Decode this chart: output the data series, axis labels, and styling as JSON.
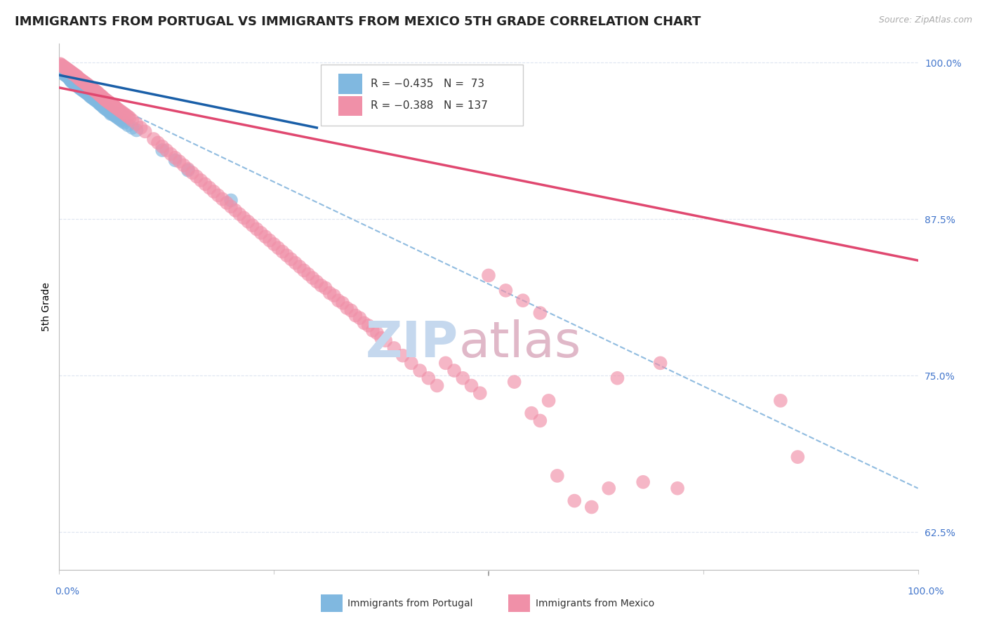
{
  "title": "IMMIGRANTS FROM PORTUGAL VS IMMIGRANTS FROM MEXICO 5TH GRADE CORRELATION CHART",
  "source": "Source: ZipAtlas.com",
  "ylabel": "5th Grade",
  "ytick_labels": [
    "100.0%",
    "87.5%",
    "75.0%",
    "62.5%"
  ],
  "ytick_values": [
    1.0,
    0.875,
    0.75,
    0.625
  ],
  "xlim": [
    0.0,
    1.0
  ],
  "ylim": [
    0.595,
    1.015
  ],
  "legend_label_portugal": "Immigrants from Portugal",
  "legend_label_mexico": "Immigrants from Mexico",
  "portugal_color": "#80b8e0",
  "mexico_color": "#f090a8",
  "portugal_line_color": "#1a5fa8",
  "mexico_line_color": "#e04870",
  "dashed_line_color": "#90bce0",
  "watermark_zip_color": "#c5d8ee",
  "watermark_atlas_color": "#e0b8c8",
  "background_color": "#ffffff",
  "grid_color": "#dde5f0",
  "right_tick_color": "#4477cc",
  "title_fontsize": 13,
  "axis_label_fontsize": 10,
  "tick_fontsize": 10,
  "portugal_pts": [
    [
      0.003,
      0.993
    ],
    [
      0.005,
      0.991
    ],
    [
      0.007,
      0.99
    ],
    [
      0.009,
      0.989
    ],
    [
      0.011,
      0.988
    ],
    [
      0.004,
      0.992
    ],
    [
      0.006,
      0.991
    ],
    [
      0.008,
      0.99
    ],
    [
      0.01,
      0.989
    ],
    [
      0.012,
      0.987
    ],
    [
      0.002,
      0.994
    ],
    [
      0.001,
      0.995
    ],
    [
      0.013,
      0.986
    ],
    [
      0.015,
      0.985
    ],
    [
      0.017,
      0.984
    ],
    [
      0.019,
      0.983
    ],
    [
      0.021,
      0.982
    ],
    [
      0.014,
      0.985
    ],
    [
      0.016,
      0.984
    ],
    [
      0.018,
      0.983
    ],
    [
      0.02,
      0.982
    ],
    [
      0.022,
      0.981
    ],
    [
      0.024,
      0.98
    ],
    [
      0.026,
      0.979
    ],
    [
      0.028,
      0.978
    ],
    [
      0.03,
      0.977
    ],
    [
      0.032,
      0.976
    ],
    [
      0.034,
      0.975
    ],
    [
      0.023,
      0.98
    ],
    [
      0.025,
      0.979
    ],
    [
      0.027,
      0.978
    ],
    [
      0.029,
      0.977
    ],
    [
      0.031,
      0.976
    ],
    [
      0.033,
      0.975
    ],
    [
      0.035,
      0.974
    ],
    [
      0.037,
      0.973
    ],
    [
      0.039,
      0.972
    ],
    [
      0.041,
      0.971
    ],
    [
      0.043,
      0.97
    ],
    [
      0.045,
      0.969
    ],
    [
      0.036,
      0.973
    ],
    [
      0.038,
      0.972
    ],
    [
      0.04,
      0.971
    ],
    [
      0.042,
      0.97
    ],
    [
      0.044,
      0.969
    ],
    [
      0.046,
      0.968
    ],
    [
      0.048,
      0.967
    ],
    [
      0.05,
      0.966
    ],
    [
      0.047,
      0.967
    ],
    [
      0.049,
      0.966
    ],
    [
      0.051,
      0.965
    ],
    [
      0.053,
      0.964
    ],
    [
      0.055,
      0.963
    ],
    [
      0.057,
      0.962
    ],
    [
      0.059,
      0.961
    ],
    [
      0.061,
      0.96
    ],
    [
      0.063,
      0.959
    ],
    [
      0.065,
      0.958
    ],
    [
      0.052,
      0.964
    ],
    [
      0.054,
      0.963
    ],
    [
      0.056,
      0.962
    ],
    [
      0.058,
      0.961
    ],
    [
      0.06,
      0.96
    ],
    [
      0.062,
      0.959
    ],
    [
      0.064,
      0.958
    ],
    [
      0.066,
      0.957
    ],
    [
      0.068,
      0.956
    ],
    [
      0.07,
      0.955
    ],
    [
      0.072,
      0.954
    ],
    [
      0.074,
      0.953
    ],
    [
      0.076,
      0.952
    ],
    [
      0.085,
      0.948
    ],
    [
      0.12,
      0.93
    ],
    [
      0.135,
      0.922
    ],
    [
      0.15,
      0.914
    ],
    [
      0.09,
      0.946
    ],
    [
      0.08,
      0.95
    ],
    [
      0.06,
      0.959
    ],
    [
      0.2,
      0.89
    ]
  ],
  "mexico_pts": [
    [
      0.003,
      0.998
    ],
    [
      0.005,
      0.997
    ],
    [
      0.007,
      0.996
    ],
    [
      0.009,
      0.995
    ],
    [
      0.011,
      0.994
    ],
    [
      0.004,
      0.997
    ],
    [
      0.006,
      0.996
    ],
    [
      0.008,
      0.995
    ],
    [
      0.01,
      0.994
    ],
    [
      0.012,
      0.993
    ],
    [
      0.002,
      0.998
    ],
    [
      0.001,
      0.999
    ],
    [
      0.013,
      0.993
    ],
    [
      0.015,
      0.992
    ],
    [
      0.017,
      0.991
    ],
    [
      0.019,
      0.99
    ],
    [
      0.021,
      0.989
    ],
    [
      0.014,
      0.992
    ],
    [
      0.016,
      0.991
    ],
    [
      0.018,
      0.99
    ],
    [
      0.02,
      0.989
    ],
    [
      0.022,
      0.988
    ],
    [
      0.024,
      0.987
    ],
    [
      0.026,
      0.986
    ],
    [
      0.028,
      0.985
    ],
    [
      0.03,
      0.984
    ],
    [
      0.032,
      0.983
    ],
    [
      0.034,
      0.982
    ],
    [
      0.023,
      0.987
    ],
    [
      0.025,
      0.986
    ],
    [
      0.027,
      0.985
    ],
    [
      0.029,
      0.984
    ],
    [
      0.031,
      0.983
    ],
    [
      0.033,
      0.982
    ],
    [
      0.035,
      0.981
    ],
    [
      0.037,
      0.98
    ],
    [
      0.039,
      0.979
    ],
    [
      0.041,
      0.978
    ],
    [
      0.043,
      0.977
    ],
    [
      0.045,
      0.976
    ],
    [
      0.036,
      0.98
    ],
    [
      0.038,
      0.979
    ],
    [
      0.04,
      0.978
    ],
    [
      0.042,
      0.977
    ],
    [
      0.044,
      0.976
    ],
    [
      0.046,
      0.975
    ],
    [
      0.048,
      0.974
    ],
    [
      0.05,
      0.973
    ],
    [
      0.047,
      0.974
    ],
    [
      0.049,
      0.973
    ],
    [
      0.051,
      0.972
    ],
    [
      0.053,
      0.971
    ],
    [
      0.055,
      0.97
    ],
    [
      0.057,
      0.969
    ],
    [
      0.059,
      0.968
    ],
    [
      0.061,
      0.967
    ],
    [
      0.063,
      0.966
    ],
    [
      0.065,
      0.965
    ],
    [
      0.052,
      0.971
    ],
    [
      0.054,
      0.97
    ],
    [
      0.056,
      0.969
    ],
    [
      0.058,
      0.968
    ],
    [
      0.06,
      0.967
    ],
    [
      0.062,
      0.966
    ],
    [
      0.064,
      0.965
    ],
    [
      0.066,
      0.964
    ],
    [
      0.068,
      0.963
    ],
    [
      0.07,
      0.962
    ],
    [
      0.072,
      0.961
    ],
    [
      0.074,
      0.96
    ],
    [
      0.076,
      0.959
    ],
    [
      0.078,
      0.958
    ],
    [
      0.08,
      0.957
    ],
    [
      0.082,
      0.956
    ],
    [
      0.085,
      0.954
    ],
    [
      0.09,
      0.951
    ],
    [
      0.095,
      0.948
    ],
    [
      0.1,
      0.945
    ],
    [
      0.11,
      0.939
    ],
    [
      0.12,
      0.933
    ],
    [
      0.13,
      0.927
    ],
    [
      0.14,
      0.921
    ],
    [
      0.15,
      0.915
    ],
    [
      0.16,
      0.909
    ],
    [
      0.17,
      0.903
    ],
    [
      0.18,
      0.897
    ],
    [
      0.19,
      0.891
    ],
    [
      0.2,
      0.885
    ],
    [
      0.21,
      0.879
    ],
    [
      0.22,
      0.873
    ],
    [
      0.23,
      0.867
    ],
    [
      0.24,
      0.861
    ],
    [
      0.25,
      0.855
    ],
    [
      0.26,
      0.849
    ],
    [
      0.27,
      0.843
    ],
    [
      0.28,
      0.837
    ],
    [
      0.29,
      0.831
    ],
    [
      0.3,
      0.825
    ],
    [
      0.115,
      0.936
    ],
    [
      0.125,
      0.93
    ],
    [
      0.135,
      0.924
    ],
    [
      0.145,
      0.918
    ],
    [
      0.155,
      0.912
    ],
    [
      0.165,
      0.906
    ],
    [
      0.175,
      0.9
    ],
    [
      0.185,
      0.894
    ],
    [
      0.195,
      0.888
    ],
    [
      0.205,
      0.882
    ],
    [
      0.215,
      0.876
    ],
    [
      0.225,
      0.87
    ],
    [
      0.235,
      0.864
    ],
    [
      0.245,
      0.858
    ],
    [
      0.255,
      0.852
    ],
    [
      0.265,
      0.846
    ],
    [
      0.275,
      0.84
    ],
    [
      0.285,
      0.834
    ],
    [
      0.295,
      0.828
    ],
    [
      0.305,
      0.822
    ],
    [
      0.315,
      0.816
    ],
    [
      0.325,
      0.81
    ],
    [
      0.335,
      0.804
    ],
    [
      0.345,
      0.798
    ],
    [
      0.355,
      0.792
    ],
    [
      0.365,
      0.786
    ],
    [
      0.375,
      0.78
    ],
    [
      0.31,
      0.82
    ],
    [
      0.32,
      0.814
    ],
    [
      0.33,
      0.808
    ],
    [
      0.34,
      0.802
    ],
    [
      0.35,
      0.796
    ],
    [
      0.36,
      0.79
    ],
    [
      0.37,
      0.784
    ],
    [
      0.38,
      0.778
    ],
    [
      0.39,
      0.772
    ],
    [
      0.4,
      0.766
    ],
    [
      0.41,
      0.76
    ],
    [
      0.42,
      0.754
    ],
    [
      0.43,
      0.748
    ],
    [
      0.44,
      0.742
    ],
    [
      0.5,
      0.83
    ],
    [
      0.52,
      0.818
    ],
    [
      0.54,
      0.81
    ],
    [
      0.56,
      0.8
    ],
    [
      0.45,
      0.76
    ],
    [
      0.46,
      0.754
    ],
    [
      0.47,
      0.748
    ],
    [
      0.48,
      0.742
    ],
    [
      0.49,
      0.736
    ],
    [
      0.55,
      0.72
    ],
    [
      0.56,
      0.714
    ],
    [
      0.65,
      0.748
    ],
    [
      0.7,
      0.76
    ],
    [
      0.84,
      0.73
    ],
    [
      0.86,
      0.685
    ],
    [
      0.68,
      0.665
    ],
    [
      0.72,
      0.66
    ],
    [
      0.6,
      0.65
    ],
    [
      0.62,
      0.645
    ],
    [
      0.58,
      0.67
    ],
    [
      0.64,
      0.66
    ],
    [
      0.53,
      0.745
    ],
    [
      0.57,
      0.73
    ]
  ],
  "portugal_line": {
    "x0": 0.0,
    "x1": 0.3,
    "y0": 0.99,
    "y1": 0.948
  },
  "mexico_line": {
    "x0": 0.0,
    "x1": 1.0,
    "y0": 0.98,
    "y1": 0.842
  },
  "dashed_line": {
    "x0": 0.05,
    "x1": 1.0,
    "y0": 0.97,
    "y1": 0.66
  }
}
